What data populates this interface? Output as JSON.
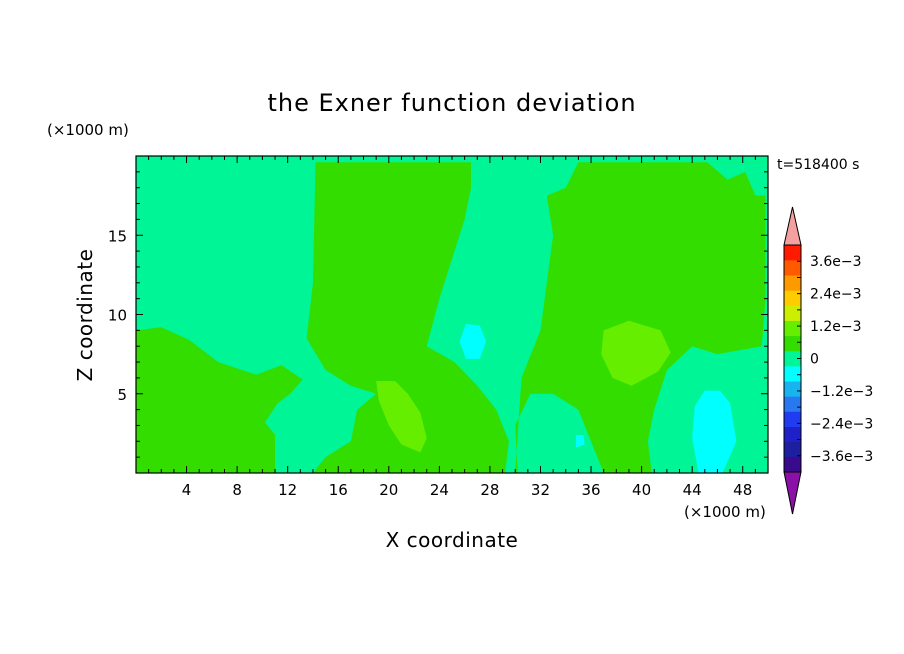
{
  "chart_data": {
    "type": "heatmap",
    "title": "the Exner function deviation",
    "xlabel": "X coordinate",
    "ylabel": "Z coordinate",
    "x_unit": "(×1000 m)",
    "y_unit": "(×1000 m)",
    "time_label": "t=518400 s",
    "xlim": [
      0,
      50
    ],
    "ylim": [
      0,
      20
    ],
    "x_ticks": [
      4,
      8,
      12,
      16,
      20,
      24,
      28,
      32,
      36,
      40,
      44,
      48
    ],
    "y_ticks": [
      5,
      10,
      15
    ],
    "colorbar": {
      "levels": [
        -0.0042,
        -0.0036,
        -0.003,
        -0.0024,
        -0.0018,
        -0.0012,
        -0.0006,
        0,
        0.0006,
        0.0012,
        0.0018,
        0.0024,
        0.003,
        0.0036,
        0.0042
      ],
      "colors": [
        "#3a0a8c",
        "#1e1ea0",
        "#2020c8",
        "#1f3cf0",
        "#2a78f0",
        "#18b4f0",
        "#00ffff",
        "#00f596",
        "#33dd00",
        "#66ee00",
        "#ccee00",
        "#ffcc00",
        "#ff9900",
        "#ff5a00",
        "#ff1a00"
      ],
      "under_color": "#8a10a8",
      "over_color": "#f5a0a0",
      "tick_labels": [
        {
          "value": 0.0036,
          "label": "3.6e−3"
        },
        {
          "value": 0.0024,
          "label": "2.4e−3"
        },
        {
          "value": 0.0012,
          "label": "1.2e−3"
        },
        {
          "value": 0,
          "label": "0"
        },
        {
          "value": -0.0012,
          "label": "−1.2e−3"
        },
        {
          "value": -0.0024,
          "label": "−2.4e−3"
        },
        {
          "value": -0.0036,
          "label": "−3.6e−3"
        }
      ]
    },
    "background_color": "#00f596",
    "regions": [
      {
        "level": 0.0003,
        "color": "#33dd00",
        "points": [
          [
            0,
            0
          ],
          [
            11,
            0
          ],
          [
            11,
            2.4
          ],
          [
            10.2,
            3.2
          ],
          [
            11.2,
            4.4
          ],
          [
            12.2,
            5.0
          ],
          [
            13.2,
            5.9
          ],
          [
            11.5,
            6.8
          ],
          [
            9.5,
            6.2
          ],
          [
            6.5,
            7.0
          ],
          [
            4.2,
            8.4
          ],
          [
            2,
            9.2
          ],
          [
            0,
            9.0
          ]
        ]
      },
      {
        "level": 0.0003,
        "color": "#33dd00",
        "points": [
          [
            14.2,
            19.6
          ],
          [
            26.5,
            19.6
          ],
          [
            26.5,
            18
          ],
          [
            26,
            16
          ],
          [
            25,
            13.5
          ],
          [
            24,
            11
          ],
          [
            23,
            8
          ],
          [
            25.2,
            7.0
          ],
          [
            27.0,
            5.5
          ],
          [
            28.5,
            4.0
          ],
          [
            29.5,
            2.0
          ],
          [
            29.2,
            0
          ],
          [
            14,
            0
          ],
          [
            15,
            1
          ],
          [
            17,
            2
          ],
          [
            17.5,
            4
          ],
          [
            19,
            5
          ],
          [
            17,
            5.5
          ],
          [
            15,
            6.5
          ],
          [
            13.5,
            8.5
          ],
          [
            14,
            12
          ]
        ]
      },
      {
        "level": 0.0003,
        "color": "#33dd00",
        "points": [
          [
            32.5,
            17.5
          ],
          [
            34,
            18
          ],
          [
            35,
            19.6
          ],
          [
            49.8,
            19.6
          ],
          [
            49.8,
            11
          ],
          [
            49.5,
            8
          ],
          [
            46,
            7.5
          ],
          [
            44,
            8
          ],
          [
            42,
            6.5
          ],
          [
            41,
            4
          ],
          [
            40.5,
            2
          ],
          [
            40.8,
            0
          ],
          [
            37,
            0
          ],
          [
            36,
            2
          ],
          [
            35,
            4
          ],
          [
            33,
            5
          ],
          [
            31.2,
            5
          ],
          [
            30,
            3
          ],
          [
            30.2,
            0
          ],
          [
            30,
            0
          ],
          [
            30.5,
            6
          ],
          [
            32,
            9
          ],
          [
            32.5,
            12
          ],
          [
            33,
            15
          ]
        ]
      },
      {
        "level": 0.0009,
        "color": "#66ee00",
        "points": [
          [
            19,
            5.8
          ],
          [
            20.5,
            5.8
          ],
          [
            21.5,
            5.0
          ],
          [
            22.5,
            3.8
          ],
          [
            23,
            2.2
          ],
          [
            22.5,
            1.3
          ],
          [
            21,
            1.8
          ],
          [
            20,
            3.0
          ],
          [
            19.2,
            4.6
          ]
        ]
      },
      {
        "level": 0.0009,
        "color": "#66ee00",
        "points": [
          [
            37,
            9.0
          ],
          [
            39,
            9.6
          ],
          [
            41.5,
            9.0
          ],
          [
            42.3,
            7.6
          ],
          [
            41.3,
            6.4
          ],
          [
            39.2,
            5.5
          ],
          [
            37.7,
            6.0
          ],
          [
            36.8,
            7.5
          ]
        ]
      },
      {
        "level": -0.0003,
        "color": "#00f596",
        "points": [
          [
            45.2,
            19.6
          ],
          [
            49.8,
            19.6
          ],
          [
            49.8,
            17.5
          ],
          [
            49,
            17.5
          ],
          [
            48.2,
            19
          ],
          [
            46.8,
            18.5
          ]
        ]
      },
      {
        "level": -0.0003,
        "color": "#00f596",
        "points": [
          [
            43.2,
            0
          ],
          [
            49.6,
            0
          ],
          [
            49.6,
            5.2
          ],
          [
            48.2,
            6.6
          ],
          [
            46.2,
            7.2
          ],
          [
            44.5,
            6.8
          ],
          [
            43.2,
            4.8
          ],
          [
            42.8,
            2.4
          ]
        ]
      },
      {
        "level": -0.0009,
        "color": "#00ffff",
        "points": [
          [
            26.1,
            9.4
          ],
          [
            27.2,
            9.3
          ],
          [
            27.7,
            8.3
          ],
          [
            27.2,
            7.2
          ],
          [
            26.1,
            7.2
          ],
          [
            25.6,
            8.3
          ]
        ]
      },
      {
        "level": -0.0009,
        "color": "#00ffff",
        "points": [
          [
            34.8,
            2.4
          ],
          [
            35.4,
            2.4
          ],
          [
            35.5,
            1.8
          ],
          [
            34.8,
            1.6
          ]
        ]
      },
      {
        "level": -0.0009,
        "color": "#00ffff",
        "points": [
          [
            44.5,
            0
          ],
          [
            46.4,
            0
          ],
          [
            47.5,
            2.0
          ],
          [
            47,
            4.4
          ],
          [
            46.2,
            5.2
          ],
          [
            45,
            5.2
          ],
          [
            44.2,
            4.2
          ],
          [
            44,
            2.2
          ]
        ]
      }
    ]
  }
}
